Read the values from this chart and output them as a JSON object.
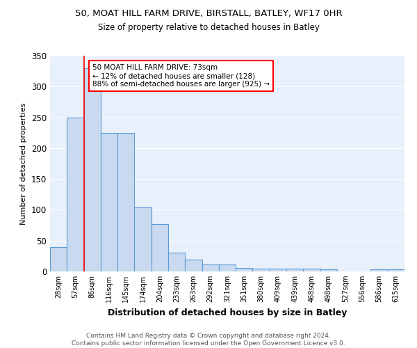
{
  "title1": "50, MOAT HILL FARM DRIVE, BIRSTALL, BATLEY, WF17 0HR",
  "title2": "Size of property relative to detached houses in Batley",
  "xlabel": "Distribution of detached houses by size in Batley",
  "ylabel": "Number of detached properties",
  "categories": [
    "28sqm",
    "57sqm",
    "86sqm",
    "116sqm",
    "145sqm",
    "174sqm",
    "204sqm",
    "233sqm",
    "263sqm",
    "292sqm",
    "321sqm",
    "351sqm",
    "380sqm",
    "409sqm",
    "439sqm",
    "468sqm",
    "498sqm",
    "527sqm",
    "556sqm",
    "586sqm",
    "615sqm"
  ],
  "values": [
    40,
    250,
    330,
    225,
    225,
    104,
    77,
    30,
    19,
    11,
    11,
    6,
    5,
    5,
    4,
    4,
    3,
    0,
    0,
    3,
    3
  ],
  "bar_color": "#c9daf0",
  "bar_edge_color": "#5b9bd5",
  "red_line_x": 1.5,
  "annotation_text": "50 MOAT HILL FARM DRIVE: 73sqm\n← 12% of detached houses are smaller (128)\n88% of semi-detached houses are larger (925) →",
  "annotation_box_color": "white",
  "annotation_box_edge_color": "red",
  "footer": "Contains HM Land Registry data © Crown copyright and database right 2024.\nContains public sector information licensed under the Open Government Licence v3.0.",
  "bg_color": "#e8f0fb",
  "grid_color": "white",
  "ylim": [
    0,
    350
  ],
  "yticks": [
    0,
    50,
    100,
    150,
    200,
    250,
    300,
    350
  ]
}
